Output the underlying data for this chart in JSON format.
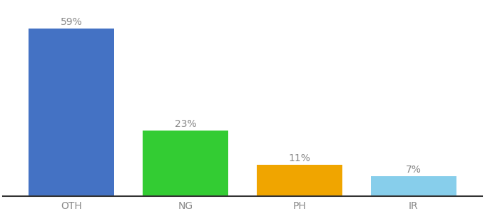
{
  "categories": [
    "OTH",
    "NG",
    "PH",
    "IR"
  ],
  "values": [
    59,
    23,
    11,
    7
  ],
  "bar_colors": [
    "#4472c4",
    "#33cc33",
    "#f0a500",
    "#87ceeb"
  ],
  "label_color": "#888888",
  "tick_color": "#888888",
  "background_color": "#ffffff",
  "ylim": [
    0,
    68
  ],
  "bar_width": 0.75,
  "label_fontsize": 10,
  "tick_fontsize": 10,
  "figsize": [
    6.8,
    3.0
  ],
  "dpi": 100
}
